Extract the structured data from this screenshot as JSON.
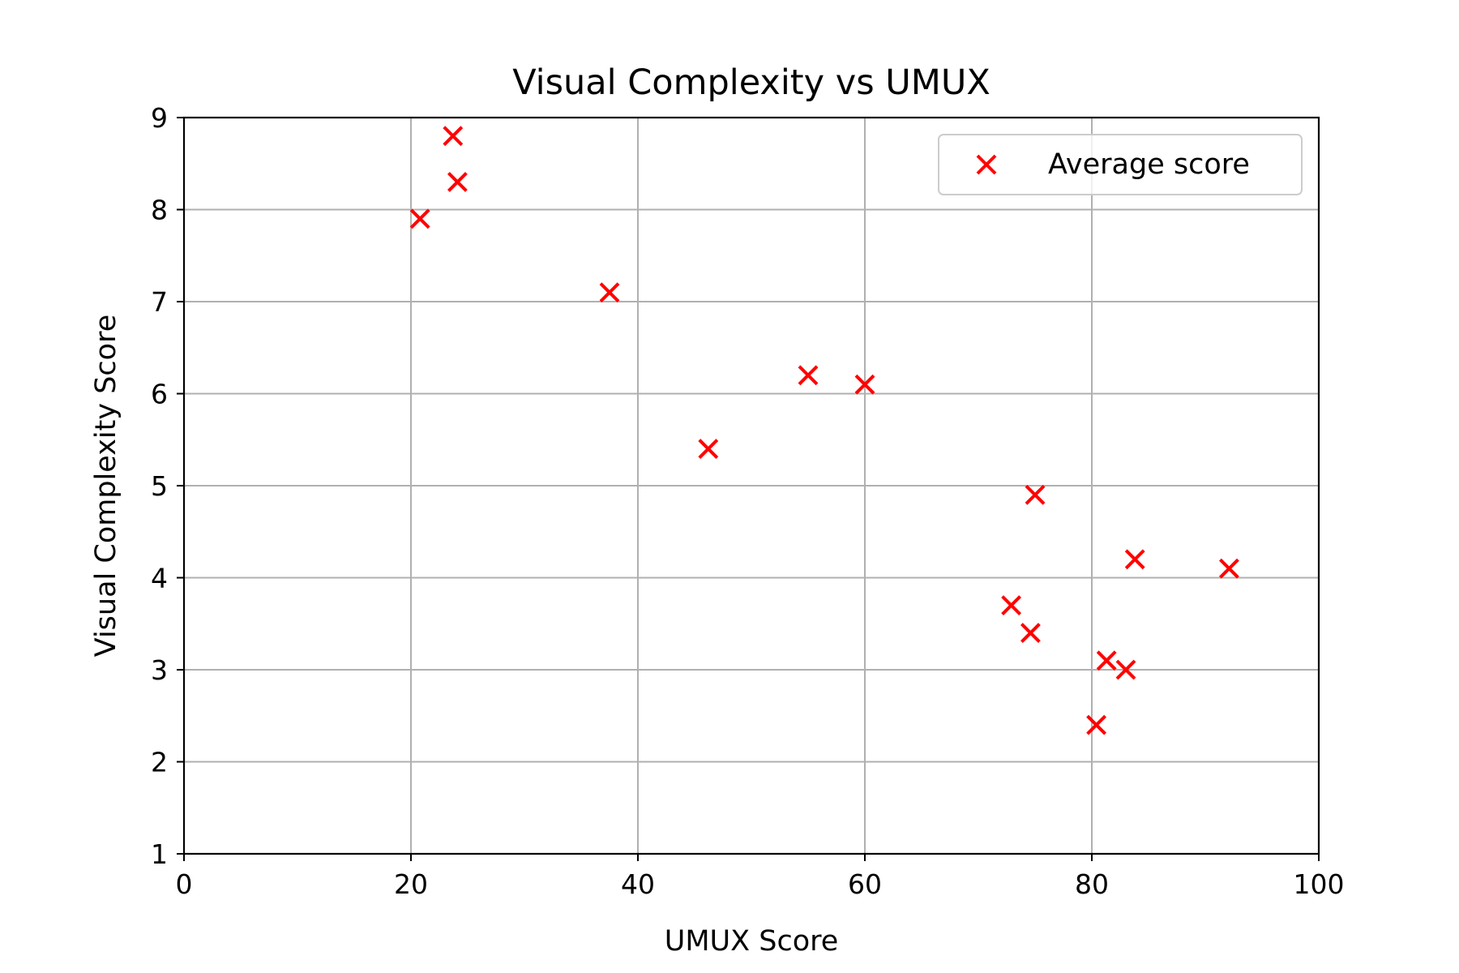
{
  "chart_data": {
    "type": "scatter",
    "title": "Visual Complexity vs UMUX",
    "xlabel": "UMUX Score",
    "ylabel": "Visual Complexity Score",
    "xlim": [
      0,
      100
    ],
    "ylim": [
      1,
      9
    ],
    "xticks": [
      "0",
      "20",
      "40",
      "60",
      "80",
      "100"
    ],
    "yticks": [
      "1",
      "2",
      "3",
      "4",
      "5",
      "6",
      "7",
      "8",
      "9"
    ],
    "grid": true,
    "legend_position": "top-right",
    "marker": "x",
    "series": [
      {
        "name": "Average score",
        "color": "#ff0000",
        "points": [
          {
            "x": 20.8,
            "y": 7.9
          },
          {
            "x": 23.7,
            "y": 8.8
          },
          {
            "x": 24.1,
            "y": 8.3
          },
          {
            "x": 37.5,
            "y": 7.1
          },
          {
            "x": 46.2,
            "y": 5.4
          },
          {
            "x": 55.0,
            "y": 6.2
          },
          {
            "x": 60.0,
            "y": 6.1
          },
          {
            "x": 72.9,
            "y": 3.7
          },
          {
            "x": 74.6,
            "y": 3.4
          },
          {
            "x": 75.0,
            "y": 4.9
          },
          {
            "x": 80.4,
            "y": 2.4
          },
          {
            "x": 81.3,
            "y": 3.1
          },
          {
            "x": 83.0,
            "y": 3.0
          },
          {
            "x": 83.8,
            "y": 4.2
          },
          {
            "x": 92.1,
            "y": 4.1
          }
        ]
      }
    ]
  }
}
